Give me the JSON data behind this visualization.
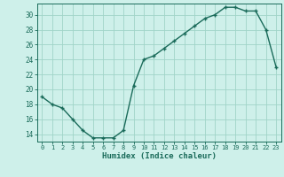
{
  "x": [
    0,
    1,
    2,
    3,
    4,
    5,
    6,
    7,
    8,
    9,
    10,
    11,
    12,
    13,
    14,
    15,
    16,
    17,
    18,
    19,
    20,
    21,
    22,
    23
  ],
  "y": [
    19,
    18,
    17.5,
    16,
    14.5,
    13.5,
    13.5,
    13.5,
    14.5,
    20.5,
    24,
    24.5,
    25.5,
    26.5,
    27.5,
    28.5,
    29.5,
    30,
    31,
    31,
    30.5,
    30.5,
    28,
    23
  ],
  "xlabel": "Humidex (Indice chaleur)",
  "xlim": [
    -0.5,
    23.5
  ],
  "ylim": [
    13,
    31.5
  ],
  "yticks": [
    14,
    16,
    18,
    20,
    22,
    24,
    26,
    28,
    30
  ],
  "xticks": [
    0,
    1,
    2,
    3,
    4,
    5,
    6,
    7,
    8,
    9,
    10,
    11,
    12,
    13,
    14,
    15,
    16,
    17,
    18,
    19,
    20,
    21,
    22,
    23
  ],
  "line_color": "#1a6b5a",
  "bg_color": "#cef0ea",
  "grid_color": "#a0d4c8",
  "tick_color": "#1a6b5a"
}
